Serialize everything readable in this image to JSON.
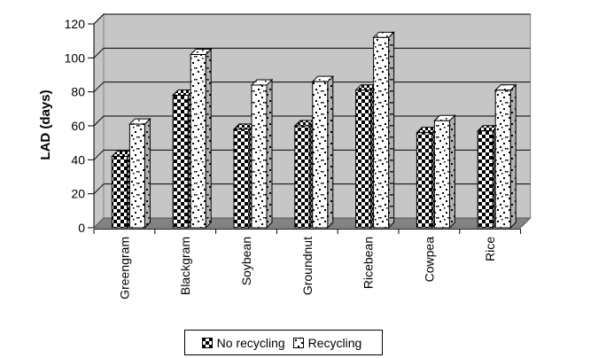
{
  "chart_data": {
    "type": "bar",
    "style": "excel-3d-effect-clustered-column",
    "title": "",
    "xlabel": "",
    "ylabel": "LAD (days)",
    "categories": [
      "Greengram",
      "Blackgram",
      "Soybean",
      "Groundnut",
      "Ricebean",
      "Cowpea",
      "Rice"
    ],
    "series": [
      {
        "name": "No recycling",
        "pattern": "checkerboard",
        "values": [
          42,
          78,
          58,
          60,
          81,
          56,
          57
        ]
      },
      {
        "name": "Recycling",
        "pattern": "dots",
        "values": [
          61,
          102,
          84,
          86,
          112,
          63,
          81
        ]
      }
    ],
    "ylim": [
      0,
      120
    ],
    "y_ticks": [
      "0",
      "20",
      "40",
      "60",
      "80",
      "100",
      "120"
    ],
    "grid": true,
    "legend_position": "bottom",
    "colors": {
      "wall": "#c6c6c6",
      "wall_edge": "#808080",
      "floor": "#848284",
      "gridline": "#000000",
      "bar_ink": "#000000",
      "bar_paper": "#ffffff",
      "text": "#000000"
    }
  }
}
